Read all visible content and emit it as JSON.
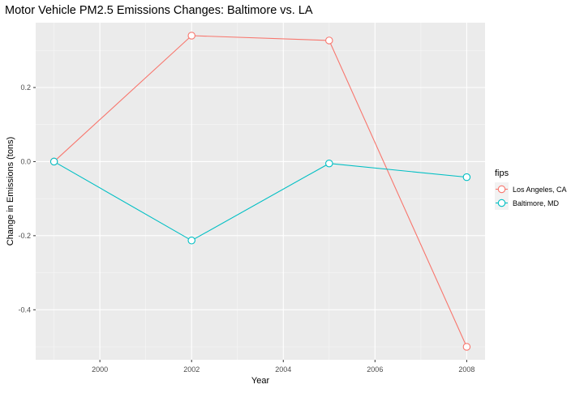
{
  "chart_data": {
    "type": "line",
    "title": "Motor Vehicle PM2.5 Emissions Changes: Baltimore vs. LA",
    "xlabel": "Year",
    "ylabel": "Change in Emissions (tons)",
    "xlim": [
      1998.6,
      2008.4
    ],
    "ylim": [
      -0.535,
      0.375
    ],
    "x_ticks": [
      2000,
      2002,
      2004,
      2006,
      2008
    ],
    "x_tick_labels": [
      "2000",
      "2002",
      "2004",
      "2006",
      "2008"
    ],
    "y_ticks": [
      -0.4,
      -0.2,
      0.0,
      0.2
    ],
    "y_tick_labels": [
      "-0.4",
      "-0.2",
      "0.0",
      "0.2"
    ],
    "grid": true,
    "legend": {
      "title": "fips",
      "placement": "right"
    },
    "series": [
      {
        "name": "Los Angeles, CA",
        "color": "#F8766D",
        "x": [
          1999,
          2002,
          2005,
          2008
        ],
        "y": [
          0.0,
          0.34,
          0.327,
          -0.5
        ]
      },
      {
        "name": "Baltimore, MD",
        "color": "#00BFC4",
        "x": [
          1999,
          2002,
          2005,
          2008
        ],
        "y": [
          0.0,
          -0.213,
          -0.005,
          -0.042
        ]
      }
    ]
  }
}
